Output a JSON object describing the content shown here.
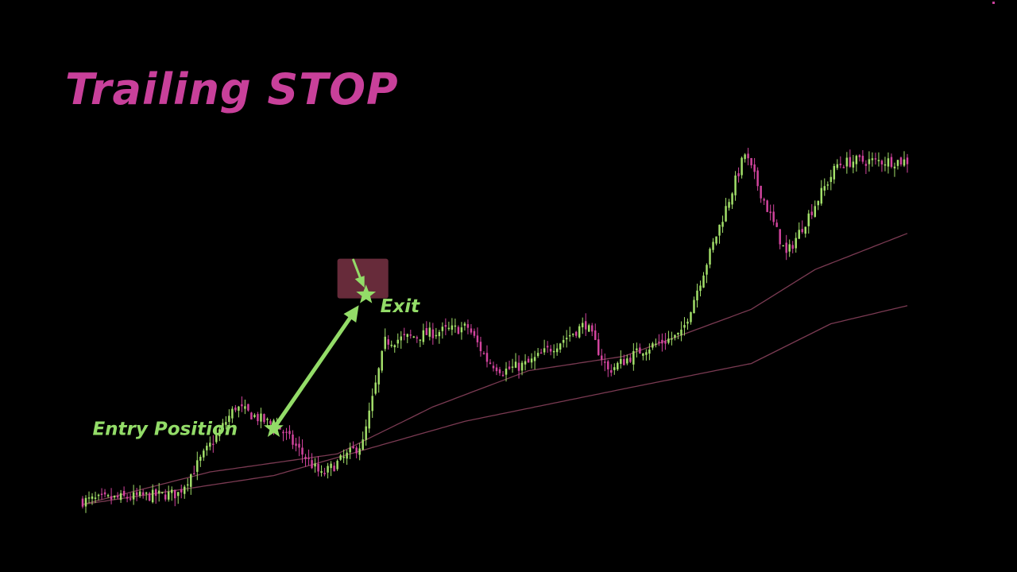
{
  "title": "Trailing STOP",
  "colors": {
    "background": "#000000",
    "title": "#c8409a",
    "bull": "#a3e06a",
    "bear": "#d2449e",
    "ma": "#7a3a52",
    "annotation": "#93dc68",
    "stop_zone": "#8a3a4e"
  },
  "chart_data": {
    "type": "candlestick",
    "title": "",
    "xlabel": "",
    "ylabel": "",
    "grid": false,
    "ylim": [
      0,
      100
    ],
    "x_count": 260,
    "key_points": {
      "x": [
        0,
        30,
        48,
        62,
        75,
        88,
        95,
        113,
        121,
        127,
        132,
        140,
        158,
        165,
        176,
        188,
        208,
        221,
        237,
        242,
        259
      ],
      "y": [
        1,
        3,
        27,
        21,
        8,
        17,
        45,
        48,
        49,
        40,
        37,
        39,
        50,
        37,
        43,
        47,
        97,
        69,
        94,
        95,
        95
      ]
    },
    "moving_averages": [
      {
        "x": [
          0,
          40,
          80,
          110,
          140,
          170,
          210,
          230,
          259
        ],
        "y": [
          0,
          9,
          14,
          27,
          37,
          41,
          54,
          65,
          75
        ]
      },
      {
        "x": [
          0,
          60,
          120,
          170,
          210,
          235,
          259
        ],
        "y": [
          0,
          8,
          23,
          32,
          39,
          50,
          55
        ]
      }
    ],
    "annotations": {
      "entry_label": "Entry Position",
      "exit_label": "Exit",
      "entry_point": {
        "x": 60,
        "y": 21
      },
      "exit_point": {
        "x": 89,
        "y": 58
      },
      "stop_zone": {
        "x_start": 80,
        "x_end": 96,
        "y_low": 57,
        "y_high": 68
      }
    }
  }
}
